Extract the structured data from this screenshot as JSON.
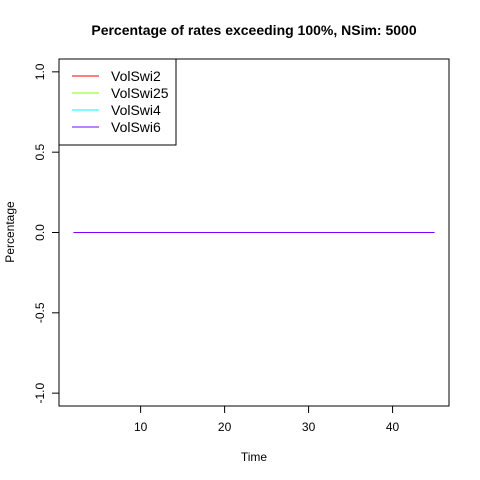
{
  "chart_data": {
    "type": "line",
    "title": "Percentage of rates exceeding 100%, NSim: 5000",
    "xlabel": "Time",
    "ylabel": "Percentage",
    "xlim": [
      0.28,
      46.72
    ],
    "ylim": [
      -1.08,
      1.08
    ],
    "x_ticks": [
      10,
      20,
      30,
      40
    ],
    "y_ticks": [
      -1.0,
      -0.5,
      0.0,
      0.5,
      1.0
    ],
    "y_tick_labels": [
      "-1.0",
      "-0.5",
      "0.0",
      "0.5",
      "1.0"
    ],
    "grid": false,
    "legend_position": "top-left",
    "series": [
      {
        "name": "VolSwi2",
        "color": "#FF0000",
        "x_range": [
          2,
          45
        ],
        "value": 0
      },
      {
        "name": "VolSwi25",
        "color": "#80FF00",
        "x_range": [
          2,
          45
        ],
        "value": 0
      },
      {
        "name": "VolSwi4",
        "color": "#00FFFF",
        "x_range": [
          2,
          45
        ],
        "value": 0
      },
      {
        "name": "VolSwi6",
        "color": "#8000FF",
        "x_range": [
          2,
          45
        ],
        "value": 0
      }
    ]
  }
}
